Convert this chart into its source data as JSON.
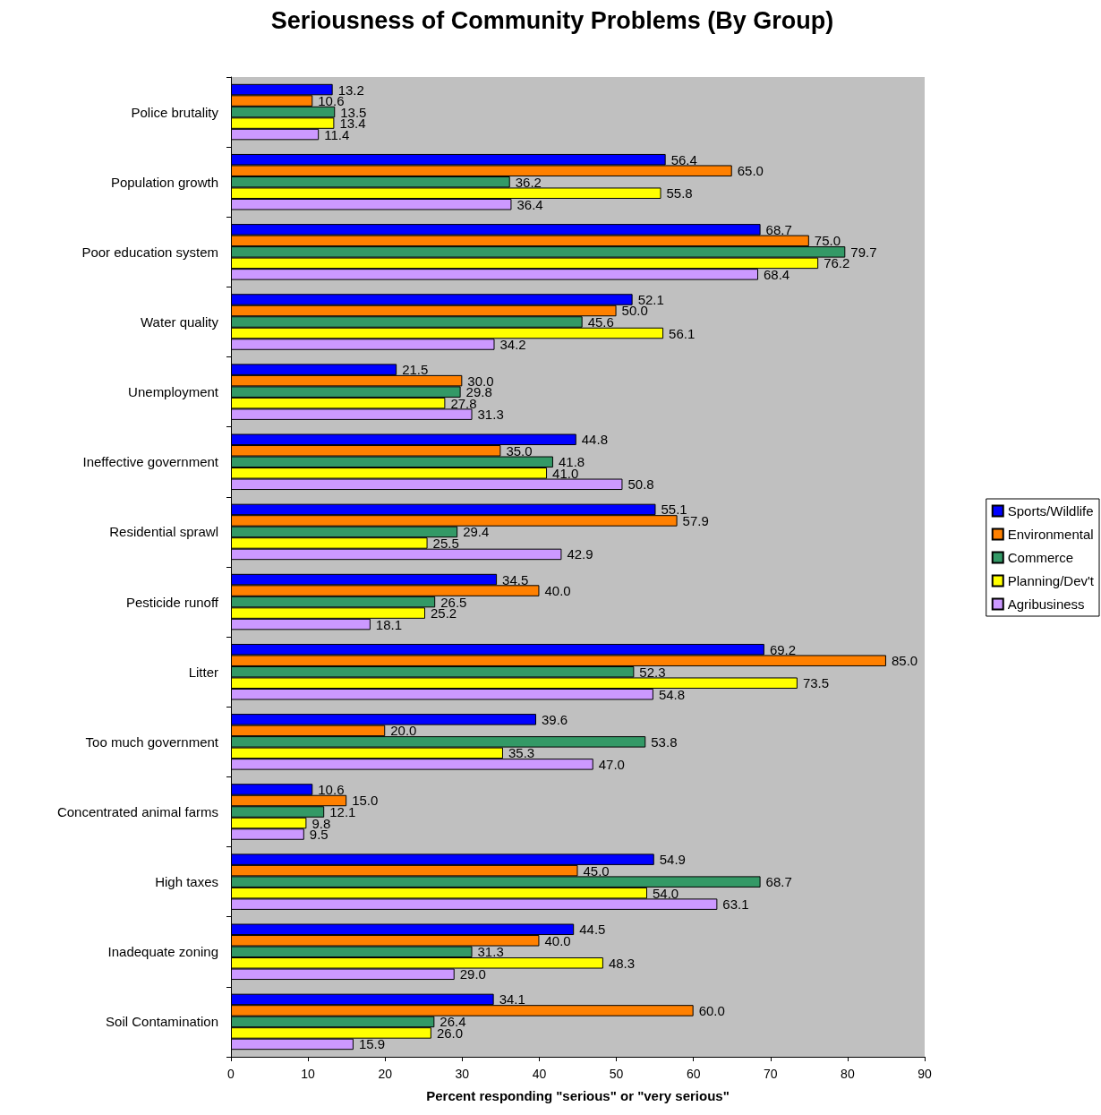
{
  "chart_data": {
    "type": "bar",
    "orientation": "horizontal",
    "title": "Seriousness of Community Problems (By Group)",
    "xlabel": "Percent responding \"serious\" or \"very serious\"",
    "categories": [
      "Police brutality",
      "Population growth",
      "Poor education system",
      "Water quality",
      "Unemployment",
      "Ineffective government",
      "Residential sprawl",
      "Pesticide runoff",
      "Litter",
      "Too much government",
      "Concentrated animal farms",
      "High taxes",
      "Inadequate zoning",
      "Soil Contamination"
    ],
    "series": [
      {
        "name": "Sports/Wildlife",
        "color": "#0000ff",
        "values": [
          13.2,
          56.4,
          68.7,
          52.1,
          21.5,
          44.8,
          55.1,
          34.5,
          69.2,
          39.6,
          10.6,
          54.9,
          44.5,
          34.1
        ],
        "value_labels": [
          "13.2",
          "56.4",
          "68.7",
          "52.1",
          "21.5",
          "44.8",
          "55.1",
          "34.5",
          "69.2",
          "39.6",
          "10.6",
          "54.9",
          "44.5",
          "34.1"
        ]
      },
      {
        "name": "Environmental",
        "color": "#ff8000",
        "values": [
          10.6,
          65.0,
          75.0,
          50.0,
          30.0,
          35.0,
          57.9,
          40.0,
          85.0,
          20.0,
          15.0,
          45.0,
          40.0,
          60.0
        ],
        "value_labels": [
          "10.6",
          "65.0",
          "75.0",
          "50.0",
          "30.0",
          "35.0",
          "57.9",
          "40.0",
          "85.0",
          "20.0",
          "15.0",
          "45.0",
          "40.0",
          "60.0"
        ]
      },
      {
        "name": "Commerce",
        "color": "#339966",
        "values": [
          13.5,
          36.2,
          79.7,
          45.6,
          29.8,
          41.8,
          29.4,
          26.5,
          52.3,
          53.8,
          12.1,
          68.7,
          31.3,
          26.4
        ],
        "value_labels": [
          "13.5",
          "36.2",
          "79.7",
          "45.6",
          "29.8",
          "41.8",
          "29.4",
          "26.5",
          "52.3",
          "53.8",
          "12.1",
          "68.7",
          "31.3",
          "26.4"
        ]
      },
      {
        "name": "Planning/Dev't",
        "color": "#ffff00",
        "values": [
          13.4,
          55.8,
          76.2,
          56.1,
          27.8,
          41.0,
          25.5,
          25.2,
          73.5,
          35.3,
          9.8,
          54.0,
          48.3,
          26.0
        ],
        "value_labels": [
          "13.4",
          "55.8",
          "76.2",
          "56.1",
          "27.8",
          "41.0",
          "25.5",
          "25.2",
          "73.5",
          "35.3",
          "9.8",
          "54.0",
          "48.3",
          "26.0"
        ]
      },
      {
        "name": "Agribusiness",
        "color": "#cc99ff",
        "values": [
          11.4,
          36.4,
          68.4,
          34.2,
          31.3,
          50.8,
          42.9,
          18.1,
          54.8,
          47.0,
          9.5,
          63.1,
          29.0,
          15.9
        ],
        "value_labels": [
          "11.4",
          "36.4",
          "68.4",
          "34.2",
          "31.3",
          "50.8",
          "42.9",
          "18.1",
          "54.8",
          "47.0",
          "9.5",
          "63.1",
          "29.0",
          "15.9"
        ]
      }
    ],
    "xlim": [
      0,
      90
    ],
    "xticks": [
      0,
      10,
      20,
      30,
      40,
      50,
      60,
      70,
      80,
      90
    ],
    "grid": false,
    "legend": "right"
  }
}
